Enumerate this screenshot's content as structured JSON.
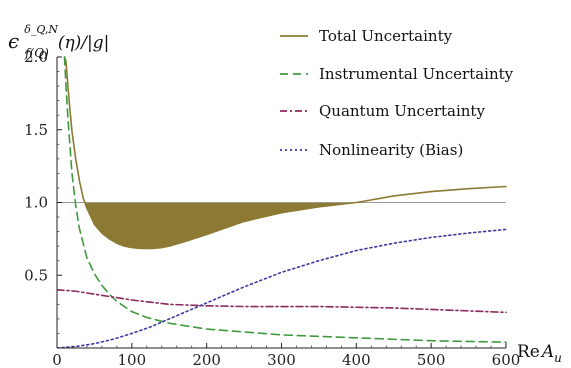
{
  "chart_data": {
    "type": "line",
    "title": "",
    "ylabel": {
      "base": "ϵ",
      "superscript": "δ_Q,N",
      "subscript": "f(Q)",
      "rest": "(η)/|g|"
    },
    "xlabel": {
      "main": "Re",
      "var": "A",
      "sub": "u"
    },
    "xlim": [
      0,
      600
    ],
    "ylim": [
      0,
      2.0
    ],
    "x_ticks": [
      {
        "value": 0,
        "label": "0"
      },
      {
        "value": 100,
        "label": "100"
      },
      {
        "value": 200,
        "label": "200"
      },
      {
        "value": 300,
        "label": "300"
      },
      {
        "value": 400,
        "label": "400"
      },
      {
        "value": 500,
        "label": "500"
      },
      {
        "value": 600,
        "label": "600"
      }
    ],
    "y_ticks": [
      {
        "value": 0.5,
        "label": "0.5"
      },
      {
        "value": 1.0,
        "label": "1.0"
      },
      {
        "value": 1.5,
        "label": "1.5"
      },
      {
        "value": 2.0,
        "label": "2.0"
      }
    ],
    "reference_line": {
      "y": 1.0,
      "color": "#9a9a9a"
    },
    "shaded_region": {
      "series": "Total Uncertainty",
      "below": 1.0,
      "color": "#8c7a34"
    },
    "legend_placement": "top-right",
    "series": [
      {
        "name": "Total Uncertainty",
        "color": "#8c7a34",
        "dash": "solid",
        "x": [
          10,
          12,
          15,
          18,
          20,
          25,
          30,
          35,
          40,
          50,
          60,
          70,
          80,
          90,
          100,
          110,
          120,
          130,
          140,
          150,
          170,
          200,
          250,
          300,
          350,
          400,
          450,
          500,
          550,
          600
        ],
        "y": [
          2.0,
          1.97,
          1.77,
          1.6,
          1.49,
          1.3,
          1.15,
          1.03,
          0.96,
          0.85,
          0.79,
          0.75,
          0.72,
          0.7,
          0.69,
          0.685,
          0.683,
          0.685,
          0.69,
          0.7,
          0.73,
          0.78,
          0.87,
          0.93,
          0.97,
          1.0,
          1.045,
          1.075,
          1.095,
          1.11
        ]
      },
      {
        "name": "Instrumental Uncertainty",
        "color": "#3f9a3f",
        "dash": "long-dash",
        "x": [
          10,
          12,
          15,
          20,
          25,
          30,
          40,
          50,
          60,
          70,
          80,
          100,
          120,
          150,
          200,
          250,
          300,
          350,
          400,
          450,
          500,
          550,
          600
        ],
        "y": [
          2.0,
          1.8,
          1.55,
          1.2,
          0.98,
          0.82,
          0.62,
          0.51,
          0.43,
          0.37,
          0.32,
          0.25,
          0.21,
          0.17,
          0.13,
          0.11,
          0.09,
          0.08,
          0.07,
          0.06,
          0.05,
          0.045,
          0.04
        ]
      },
      {
        "name": "Quantum Uncertainty",
        "color": "#8c2a5e",
        "dash": "dash-dot",
        "x": [
          0,
          25,
          50,
          100,
          150,
          200,
          250,
          300,
          350,
          400,
          450,
          500,
          550,
          600
        ],
        "y": [
          0.4,
          0.39,
          0.37,
          0.33,
          0.3,
          0.29,
          0.285,
          0.285,
          0.285,
          0.28,
          0.275,
          0.265,
          0.255,
          0.245
        ]
      },
      {
        "name": "Nonlinearity (Bias)",
        "color": "#3a3aa0",
        "dash": "dotted",
        "x": [
          0,
          25,
          50,
          75,
          100,
          125,
          150,
          175,
          200,
          250,
          300,
          350,
          400,
          450,
          500,
          550,
          600
        ],
        "y": [
          0.0,
          0.01,
          0.03,
          0.06,
          0.1,
          0.145,
          0.2,
          0.255,
          0.31,
          0.42,
          0.52,
          0.6,
          0.67,
          0.72,
          0.76,
          0.79,
          0.815
        ]
      }
    ]
  }
}
